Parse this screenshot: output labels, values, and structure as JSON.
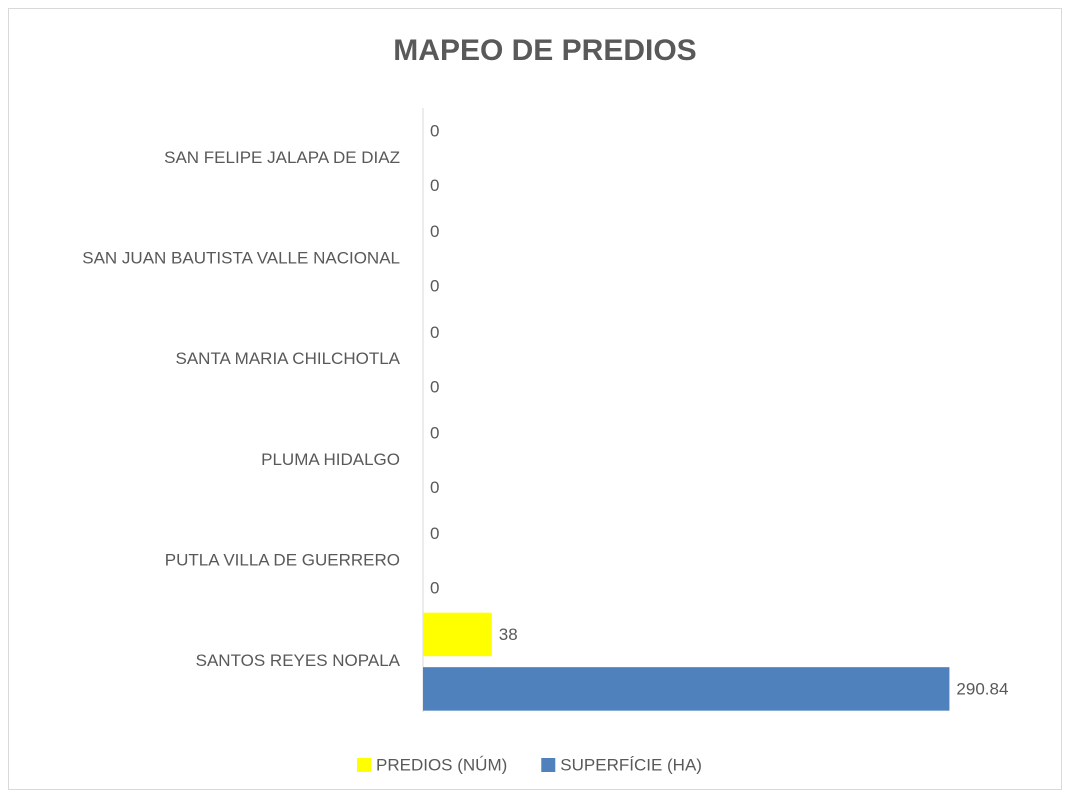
{
  "chart_data": {
    "type": "hbar",
    "title": "MAPEO DE PREDIOS",
    "categories": [
      "SAN FELIPE JALAPA DE DIAZ",
      "SAN JUAN BAUTISTA VALLE NACIONAL",
      "SANTA MARIA CHILCHOTLA",
      "PLUMA HIDALGO",
      "PUTLA VILLA DE GUERRERO",
      "SANTOS REYES NOPALA"
    ],
    "series": [
      {
        "name": "PREDIOS (NÚM)",
        "color": "#ffff00",
        "values": [
          0,
          0,
          0,
          0,
          0,
          38
        ]
      },
      {
        "name": "SUPERFÍCIE (HA)",
        "color": "#4f81bd",
        "values": [
          0,
          0,
          0,
          0,
          0,
          290.84
        ]
      }
    ],
    "xlim": [
      0,
      300
    ],
    "legend": "bottom"
  }
}
